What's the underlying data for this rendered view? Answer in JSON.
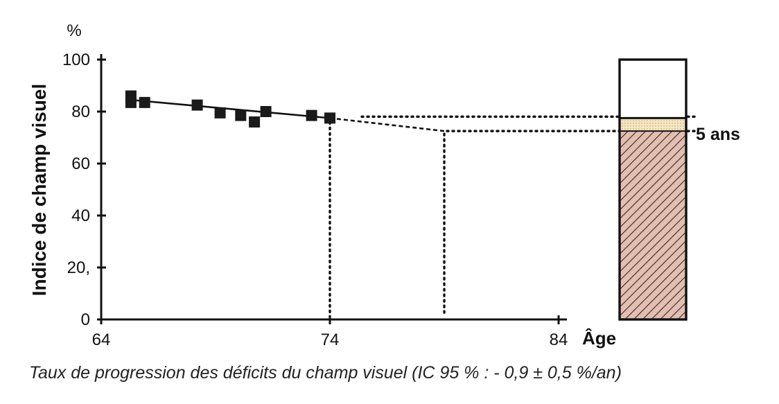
{
  "chart_data": {
    "type": "scatter",
    "y_unit": "%",
    "ylabel": "Indice de champ visuel",
    "xlabel": "Âge",
    "xlim": [
      64,
      84
    ],
    "ylim": [
      0,
      100
    ],
    "x_ticks": [
      64,
      74,
      84
    ],
    "y_ticks": [
      0,
      20,
      40,
      60,
      80,
      100
    ],
    "y_tick_labels": [
      "0",
      "20,",
      "40",
      "60",
      "80",
      "100"
    ],
    "points": [
      {
        "x": 65.3,
        "y": 86
      },
      {
        "x": 65.3,
        "y": 83.5
      },
      {
        "x": 65.9,
        "y": 83.5
      },
      {
        "x": 68.2,
        "y": 82.5
      },
      {
        "x": 69.2,
        "y": 79.5
      },
      {
        "x": 70.1,
        "y": 78.5
      },
      {
        "x": 70.7,
        "y": 76
      },
      {
        "x": 71.2,
        "y": 80
      },
      {
        "x": 73.2,
        "y": 78.5
      },
      {
        "x": 74.0,
        "y": 77.5
      }
    ],
    "trend_fit": {
      "x": [
        65.3,
        74.0
      ],
      "y": [
        84.5,
        77.5
      ]
    },
    "trend_projection": {
      "x": [
        74.0,
        79.0
      ],
      "y": [
        77.5,
        72.5
      ]
    },
    "reference_lines": {
      "current_age": 74,
      "projected_age": 79
    },
    "bar": {
      "top": 100,
      "current_value": 77.5,
      "projected_value": 72.5,
      "annotation": "5 ans"
    },
    "caption": "Taux de progression des déficits du champ visuel (IC 95 % : - 0,9 ± 0,5 %/an)",
    "colors": {
      "points": "#1a1a1a",
      "bar_fill": "#e2bfb1",
      "bar_hatch": "#3a2420",
      "band_fill": "#f6e6c3"
    }
  }
}
